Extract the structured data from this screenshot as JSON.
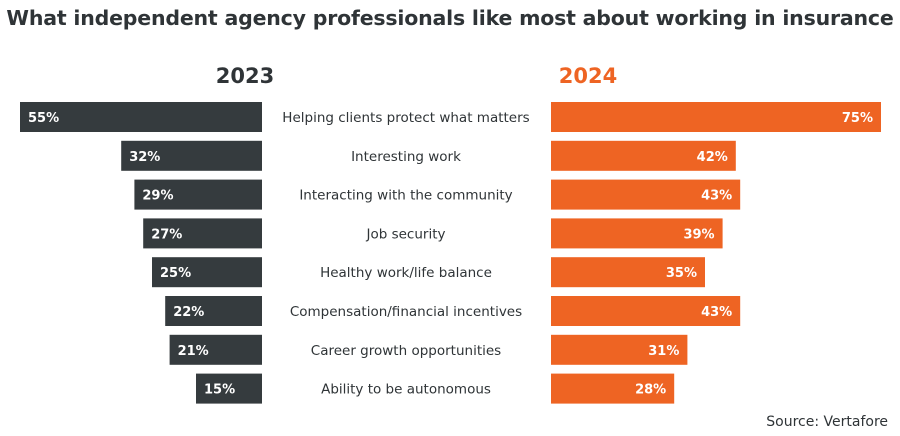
{
  "chart_data": {
    "type": "bar",
    "title": "What independent agency professionals like most about working in insurance",
    "source": "Source: Vertafore",
    "categories": [
      "Helping clients protect what matters",
      "Interesting work",
      "Interacting with the community",
      "Job security",
      "Healthy work/life balance",
      "Compensation/financial incentives",
      "Career growth opportunities",
      "Ability to be autonomous"
    ],
    "series": [
      {
        "name": "2023",
        "values": [
          55,
          32,
          29,
          27,
          25,
          22,
          21,
          15
        ],
        "labels": [
          "55%",
          "32%",
          "29%",
          "27%",
          "25%",
          "22%",
          "21%",
          "15%"
        ],
        "color": "#353b3e"
      },
      {
        "name": "2024",
        "values": [
          75,
          42,
          43,
          39,
          35,
          43,
          31,
          28
        ],
        "labels": [
          "75%",
          "42%",
          "43%",
          "39%",
          "35%",
          "43%",
          "31%",
          "28%"
        ],
        "color": "#ee6423"
      }
    ],
    "xlim": [
      0,
      75
    ],
    "grid": false,
    "legend": "series names above each side"
  }
}
